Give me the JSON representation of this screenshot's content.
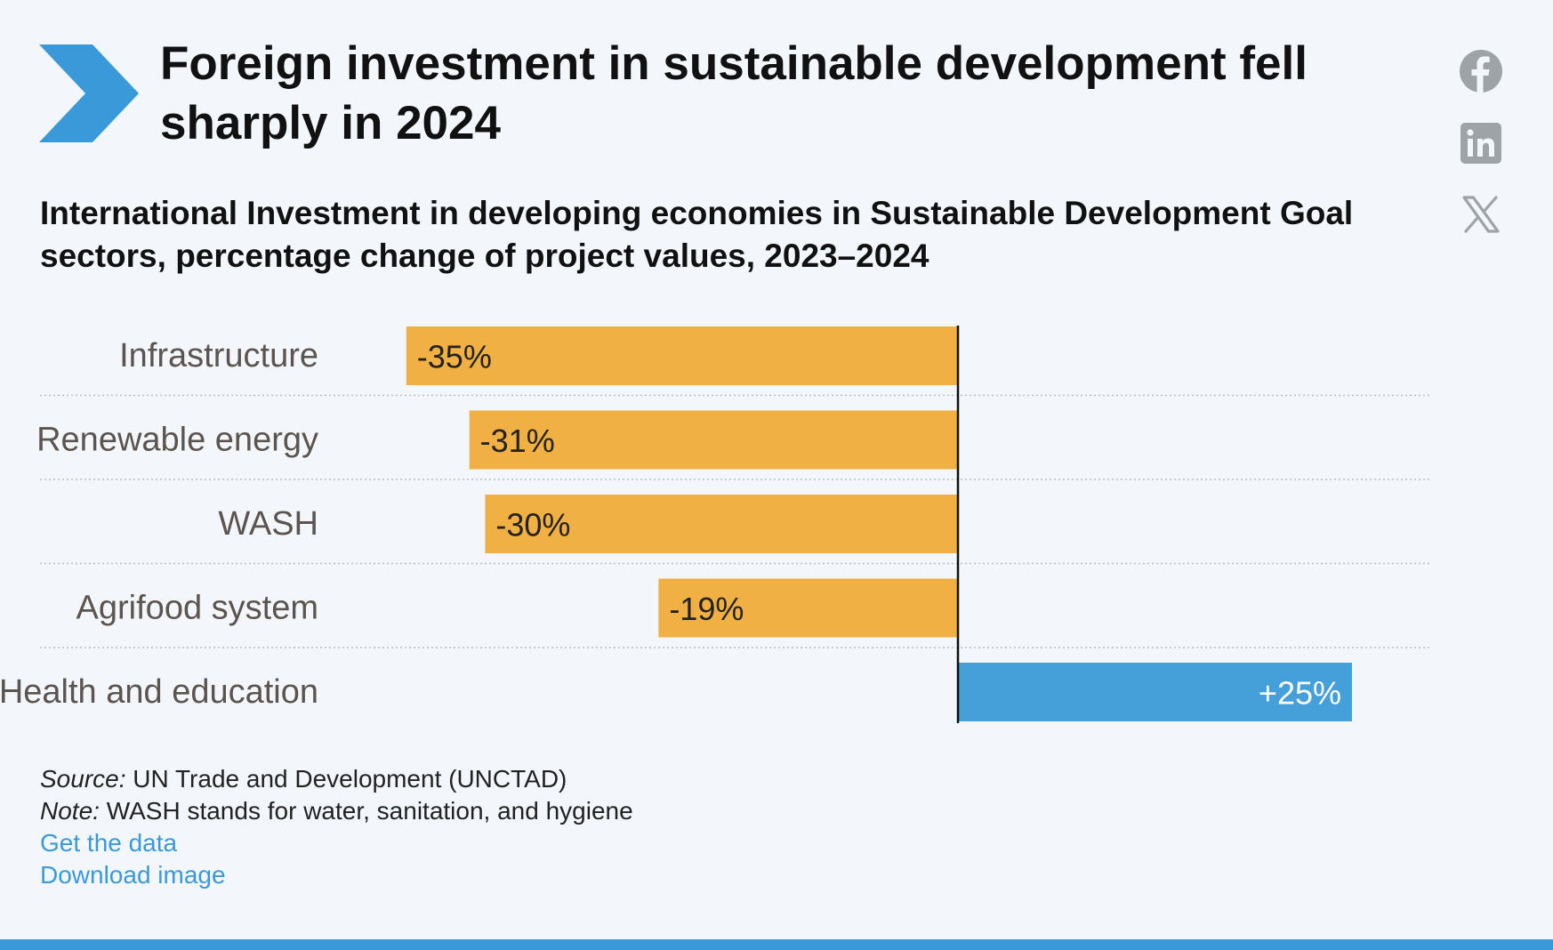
{
  "headline": "Foreign investment in sustainable development fell sharply in 2024",
  "icons": {
    "logo": "chevron-right-icon",
    "social": [
      "facebook-icon",
      "linkedin-icon",
      "x-icon"
    ]
  },
  "colors": {
    "negative": "#f0b043",
    "positive": "#459fd9",
    "accent": "#3a9ad9",
    "background": "#f3f7fb"
  },
  "chart_data": {
    "type": "bar",
    "orientation": "horizontal",
    "title": "International Investment in developing economies in Sustainable Development Goal sectors, percentage change of project values, 2023–2024",
    "categories": [
      "Infrastructure",
      "Renewable energy",
      "WASH",
      "Agrifood system",
      "Health and education"
    ],
    "values": [
      -35,
      -31,
      -30,
      -19,
      25
    ],
    "labels": [
      "-35%",
      "-31%",
      "-30%",
      "-19%",
      "+25%"
    ],
    "xlim": [
      -35,
      30
    ],
    "grid": false
  },
  "footer": {
    "source_label": "Source:",
    "source_text": " UN Trade and Development (UNCTAD)",
    "note_label": "Note:",
    "note_text": " WASH stands for water, sanitation, and hygiene",
    "get_data": "Get the data",
    "download": "Download image"
  }
}
